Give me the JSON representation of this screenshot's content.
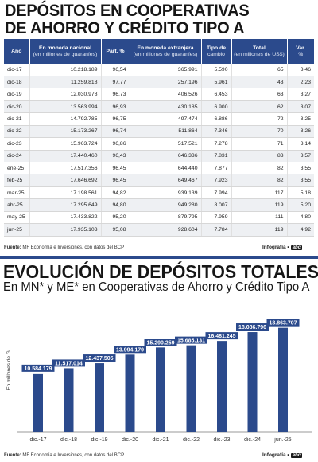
{
  "table_section": {
    "title_line1": "DEPÓSITOS EN COOPERATIVAS",
    "title_line2": "DE AHORRO Y CRÉDITO TIPO A",
    "headers": [
      {
        "label": "Año",
        "sub": ""
      },
      {
        "label": "En moneda nacional",
        "sub": "(en millones de guaraníes)"
      },
      {
        "label": "Part. %",
        "sub": ""
      },
      {
        "label": "En moneda extranjera",
        "sub": "(en millones de guaraníes)"
      },
      {
        "label": "Tipo de",
        "sub": "cambio"
      },
      {
        "label": "Total",
        "sub": "(en millones de US$)"
      },
      {
        "label": "Var.",
        "sub": "%"
      }
    ],
    "rows": [
      [
        "dic-17",
        "10.218.189",
        "96,54",
        "365.991",
        "5.590",
        "65",
        "3,46"
      ],
      [
        "dic-18",
        "11.259.818",
        "97,77",
        "257.196",
        "5.961",
        "43",
        "2,23"
      ],
      [
        "dic-19",
        "12.030.978",
        "96,73",
        "406.526",
        "6.453",
        "63",
        "3,27"
      ],
      [
        "dic-20",
        "13.563.994",
        "96,93",
        "430.185",
        "6.900",
        "62",
        "3,07"
      ],
      [
        "dic-21",
        "14.792.785",
        "96,75",
        "497.474",
        "6.886",
        "72",
        "3,25"
      ],
      [
        "dic-22",
        "15.173.267",
        "96,74",
        "511.864",
        "7.346",
        "70",
        "3,26"
      ],
      [
        "dic-23",
        "15.963.724",
        "96,86",
        "517.521",
        "7.278",
        "71",
        "3,14"
      ],
      [
        "dic-24",
        "17.440.460",
        "96,43",
        "646.336",
        "7.831",
        "83",
        "3,57"
      ],
      [
        "ene-25",
        "17.517.356",
        "96,45",
        "644.440",
        "7.877",
        "82",
        "3,55"
      ],
      [
        "feb-25",
        "17.646.692",
        "96,45",
        "649.467",
        "7.923",
        "82",
        "3,55"
      ],
      [
        "mar-25",
        "17.198.561",
        "94,82",
        "939.139",
        "7.994",
        "117",
        "5,18"
      ],
      [
        "abr-25",
        "17.295.649",
        "94,80",
        "949.280",
        "8.007",
        "119",
        "5,20"
      ],
      [
        "may-25",
        "17.433.822",
        "95,20",
        "879.795",
        "7.959",
        "111",
        "4,80"
      ],
      [
        "jun-25",
        "17.935.103",
        "95,08",
        "928.604",
        "7.784",
        "119",
        "4,92"
      ]
    ],
    "source_label": "Fuente:",
    "source_text": " MF Economía e Inversiones, con datos del BCP",
    "credit_label": "Infografía •",
    "credit_logo": "abc"
  },
  "chart_section": {
    "title": "EVOLUCIÓN DE DEPÓSITOS TOTALES",
    "subtitle": "En MN* y ME* en Cooperativas de Ahorro y Crédito Tipo A",
    "source_label": "Fuente:",
    "source_text": " MF Economía e Inversiones, con datos del BCP",
    "credit_label": "Infografía •",
    "credit_logo": "abc"
  },
  "colors": {
    "header_blue": "#2b4a8c",
    "bar_blue": "#2b4a8c",
    "label_box": "#2b4a8c",
    "row_alt": "#eef0f3"
  },
  "chart_data": {
    "type": "bar",
    "title": "EVOLUCIÓN DE DEPÓSITOS TOTALES",
    "subtitle": "En MN* y ME* en Cooperativas de Ahorro y Crédito Tipo A",
    "xlabel": "",
    "ylabel": "En millones de G.",
    "categories": [
      "dic.-17",
      "dic.-18",
      "dic.-19",
      "dic.-20",
      "dic.-21",
      "dic.-22",
      "dic.-23",
      "dic.-24",
      "jun.-25"
    ],
    "values": [
      10584179,
      11517014,
      12437505,
      13994179,
      15290259,
      15685131,
      16481245,
      18086796,
      18863707
    ],
    "data_labels": [
      "10.584.179",
      "11.517.014",
      "12.437.505",
      "13.994.179",
      "15.290.259",
      "15.685.131",
      "16.481.245",
      "18.086.796",
      "18.863.707"
    ],
    "ylim": [
      0,
      22000000
    ],
    "grid": false,
    "legend": "none"
  }
}
